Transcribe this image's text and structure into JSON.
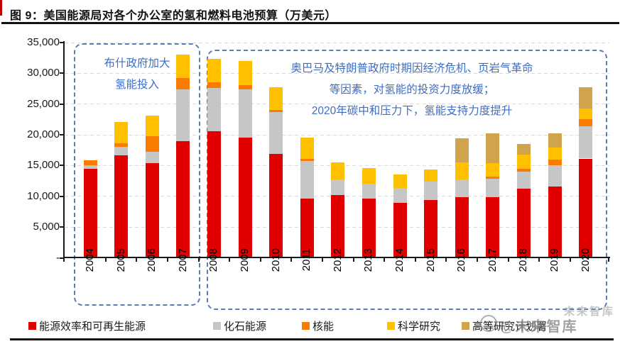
{
  "title": "图 9：美国能源局对各个办公室的氢和燃料电池预算（万美元）",
  "chart_data": {
    "type": "bar",
    "stacked": true,
    "title": "美国能源局对各个办公室的氢和燃料电池预算（万美元）",
    "xlabel": "",
    "ylabel": "",
    "ylim": [
      0,
      35000
    ],
    "grid": "horizontal-dashed",
    "legend_position": "bottom",
    "y_ticks": [
      {
        "label": "35,000",
        "value": 35000
      },
      {
        "label": "30,000",
        "value": 30000
      },
      {
        "label": "25,000",
        "value": 25000
      },
      {
        "label": "20,000",
        "value": 20000
      },
      {
        "label": "15,000",
        "value": 15000
      },
      {
        "label": "10,000",
        "value": 10000
      },
      {
        "label": "5,000",
        "value": 5000
      },
      {
        "label": "-",
        "value": 0
      }
    ],
    "categories": [
      "2004",
      "2005",
      "2006",
      "2007",
      "2008",
      "2009",
      "2010",
      "2011",
      "2012",
      "2013",
      "2014",
      "2015",
      "2016",
      "2017",
      "2018",
      "2019",
      "2020"
    ],
    "series": [
      {
        "name": "能源效率和可再生能源",
        "color": "#e00000",
        "values": [
          14500,
          16700,
          15400,
          19000,
          20600,
          19500,
          16900,
          9650,
          10200,
          9650,
          8900,
          9450,
          9900,
          9850,
          11250,
          11550,
          16150
        ]
      },
      {
        "name": "化石能源",
        "color": "#c6c6c6",
        "values": [
          500,
          1350,
          1900,
          8400,
          7000,
          7900,
          6750,
          6150,
          2600,
          2400,
          2500,
          2950,
          2900,
          3050,
          2800,
          3450,
          5200
        ]
      },
      {
        "name": "核能",
        "color": "#f97c00",
        "values": [
          900,
          600,
          2500,
          1850,
          950,
          650,
          400,
          300,
          0,
          0,
          0,
          0,
          0,
          300,
          450,
          950,
          1150
        ]
      },
      {
        "name": "科学研究",
        "color": "#ffc000",
        "values": [
          0,
          3450,
          3300,
          3750,
          3750,
          3950,
          3650,
          3450,
          2700,
          2550,
          2200,
          1950,
          2700,
          2200,
          2250,
          1950,
          1750
        ]
      },
      {
        "name": "高等研究计划署",
        "color": "#d0a44c",
        "values": [
          0,
          0,
          0,
          0,
          0,
          0,
          0,
          0,
          0,
          0,
          0,
          0,
          3900,
          4800,
          1750,
          2300,
          3450
        ]
      }
    ]
  },
  "annotations": [
    {
      "lines": [
        "布什政府加大",
        "氢能投入"
      ]
    },
    {
      "lines": [
        "奥巴马及特朗普政府时期因经济危机、页岩气革命",
        "等因素，对氢能的投资力度放缓；",
        "2020年碳中和压力下，氢能支持力度提升"
      ]
    }
  ],
  "watermark": {
    "line1": "未来智库",
    "line2": "@未来智库"
  },
  "colors": {
    "accent_red": "#c00000",
    "annotation_blue": "#3e6dc5",
    "dashed_box_blue": "#5b7cb8",
    "gridline_gray": "#d9d9d9",
    "axis_black": "#1a1a1a"
  }
}
